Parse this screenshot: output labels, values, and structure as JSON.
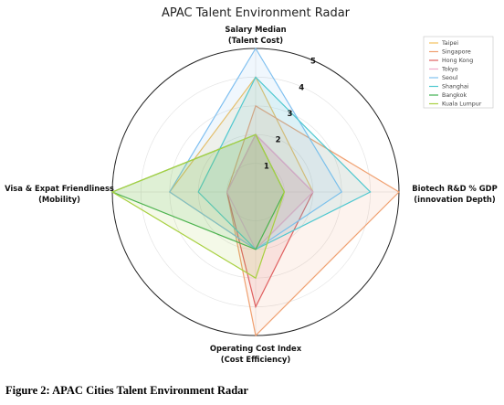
{
  "chart_data": {
    "type": "radar",
    "title": "APAC Talent Environment Radar",
    "axes": [
      {
        "line1": "Salary Median",
        "line2": "(Talent Cost)"
      },
      {
        "line1": "Biotech R&D % GDP",
        "line2": "(innovation Depth)"
      },
      {
        "line1": "Operating Cost Index",
        "line2": "(Cost Efficiency)"
      },
      {
        "line1": "Visa & Expat Friendliness",
        "line2": "(Mobility)"
      }
    ],
    "rticks": [
      "1",
      "2",
      "3",
      "4",
      "5"
    ],
    "rmax": 5,
    "grid": true,
    "legend_position": "top-right",
    "series": [
      {
        "name": "Taipei",
        "color": "#f2c05c",
        "values": [
          4,
          2,
          2,
          3
        ]
      },
      {
        "name": "Singapore",
        "color": "#f0a070",
        "values": [
          3,
          5,
          5,
          1
        ]
      },
      {
        "name": "Hong Kong",
        "color": "#e06060",
        "values": [
          2,
          2,
          4,
          1
        ]
      },
      {
        "name": "Tokyo",
        "color": "#f0a8c8",
        "values": [
          2,
          2,
          2,
          1
        ]
      },
      {
        "name": "Seoul",
        "color": "#80c0f0",
        "values": [
          5,
          3,
          2,
          3
        ]
      },
      {
        "name": "Shanghai",
        "color": "#50c8d0",
        "values": [
          4,
          4,
          2,
          2
        ]
      },
      {
        "name": "Bangkok",
        "color": "#40b050",
        "values": [
          2,
          1,
          2,
          5
        ]
      },
      {
        "name": "Kuala Lumpur",
        "color": "#a8d040",
        "values": [
          2,
          1,
          3,
          5
        ]
      }
    ]
  },
  "caption": "Figure 2: APAC Cities Talent Environment Radar"
}
